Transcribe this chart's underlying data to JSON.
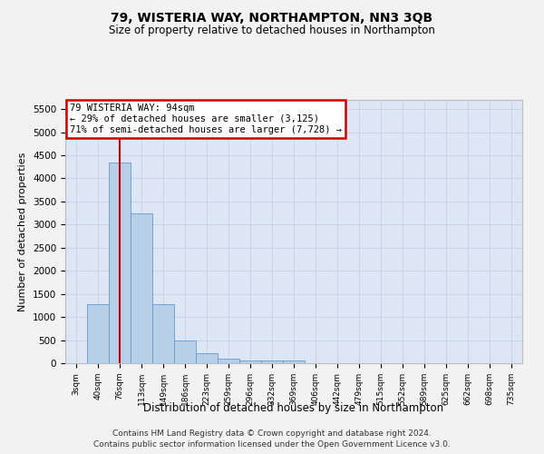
{
  "title": "79, WISTERIA WAY, NORTHAMPTON, NN3 3QB",
  "subtitle": "Size of property relative to detached houses in Northampton",
  "xlabel": "Distribution of detached houses by size in Northampton",
  "ylabel": "Number of detached properties",
  "footer_line1": "Contains HM Land Registry data © Crown copyright and database right 2024.",
  "footer_line2": "Contains public sector information licensed under the Open Government Licence v3.0.",
  "bar_labels": [
    "3sqm",
    "40sqm",
    "76sqm",
    "113sqm",
    "149sqm",
    "186sqm",
    "223sqm",
    "259sqm",
    "296sqm",
    "332sqm",
    "369sqm",
    "406sqm",
    "442sqm",
    "479sqm",
    "515sqm",
    "552sqm",
    "589sqm",
    "625sqm",
    "662sqm",
    "698sqm",
    "735sqm"
  ],
  "bar_values": [
    0,
    1270,
    4350,
    3250,
    1270,
    490,
    220,
    90,
    60,
    50,
    50,
    0,
    0,
    0,
    0,
    0,
    0,
    0,
    0,
    0,
    0
  ],
  "bar_color": "#b8cfe8",
  "bar_edgecolor": "#6699cc",
  "ylim": [
    0,
    5700
  ],
  "yticks": [
    0,
    500,
    1000,
    1500,
    2000,
    2500,
    3000,
    3500,
    4000,
    4500,
    5000,
    5500
  ],
  "vline_index": 2.0,
  "annotation_title": "79 WISTERIA WAY: 94sqm",
  "annotation_line1": "← 29% of detached houses are smaller (3,125)",
  "annotation_line2": "71% of semi-detached houses are larger (7,728) →",
  "annotation_box_facecolor": "#ffffff",
  "annotation_box_edgecolor": "#cc0000",
  "vline_color": "#cc0000",
  "grid_color": "#c8d4e8",
  "bg_color": "#dce6f4",
  "fig_bg_color": "#f2f2f2"
}
